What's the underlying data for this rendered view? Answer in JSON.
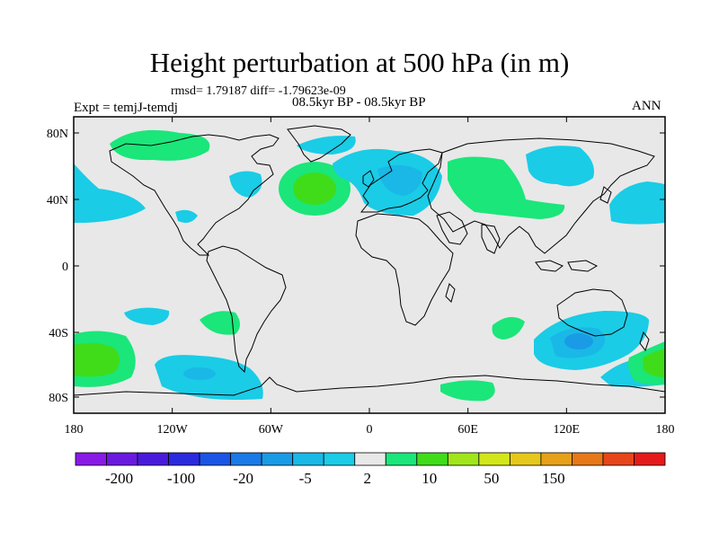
{
  "map": {
    "title": "Height perturbation at 500 hPa (in m)",
    "stats": "rmsd= 1.79187 diff= -1.79623e-09",
    "left_label": "Expt = temjJ-temdj",
    "center_label": "08.5kyr BP - 08.5kyr BP",
    "right_label": "ANN",
    "lat_ticks": [
      "80N",
      "40N",
      "0",
      "40S",
      "80S"
    ],
    "lon_ticks": [
      "180",
      "120W",
      "60W",
      "0",
      "60E",
      "120E",
      "180"
    ]
  },
  "colorbar": {
    "colors": [
      "#8a1ae6",
      "#6a1ae0",
      "#4a1adc",
      "#2a2ade",
      "#1a55e6",
      "#1a7ae6",
      "#1a9be6",
      "#1ab8e6",
      "#1acce6",
      "#e8e8e8",
      "#1ae67a",
      "#40dc1a",
      "#a0e61a",
      "#d2e61a",
      "#e6c81a",
      "#e6a01a",
      "#e6781a",
      "#e6461a",
      "#e61a1a"
    ],
    "labels": [
      "-200",
      "-100",
      "-20",
      "-5",
      "2",
      "10",
      "50",
      "150"
    ]
  },
  "colors": {
    "background": "#e8e8e8",
    "green_light": "#1ae67a",
    "green_strong": "#40dc1a",
    "cyan": "#1acce6",
    "blue": "#1ab8e6",
    "blue_dark": "#1a9be6"
  }
}
